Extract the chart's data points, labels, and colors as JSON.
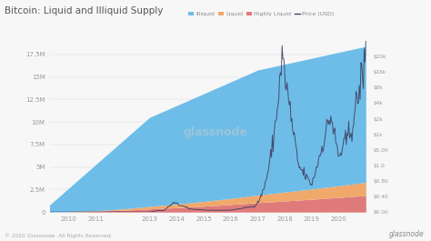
{
  "title": "Bitcoin: Liquid and Illiquid Supply",
  "xlim_start": 2009.3,
  "xlim_end": 2021.1,
  "ylim_left": [
    0,
    19000000
  ],
  "ylim_right": [
    0,
    22000
  ],
  "yticks_left": [
    0,
    2500000,
    5000000,
    7500000,
    10000000,
    12500000,
    15000000,
    17500000
  ],
  "ytick_labels_left": [
    "0",
    "2.5M",
    "5M",
    "7.5M",
    "10M",
    "12.5M",
    "15M",
    "17.5M"
  ],
  "yticks_right": [
    0,
    2000,
    4000,
    6000,
    8000,
    10000,
    12000,
    14000,
    16000,
    18000,
    20000
  ],
  "ytick_labels_right": [
    "$0.00",
    "$0.40",
    "$0.80",
    "$1.0",
    "$5.00",
    "$1k",
    "$2k",
    "$4k",
    "$8k",
    "$16k",
    "$20k"
  ],
  "color_illiquid": "#6dbde8",
  "color_highly_liquid": "#e07b7b",
  "color_liquid": "#f0a96b",
  "color_price": "#404060",
  "bg_color": "#f7f7f7",
  "watermark": "glassnode",
  "footer": "© 2020 Glassnode. All Rights Reserved.",
  "legend_items": [
    "Illiquid",
    "Liquid",
    "Highly Liquid",
    "Price (USD)"
  ],
  "legend_colors": [
    "#6dbde8",
    "#f0a96b",
    "#e07b7b",
    "#666688"
  ]
}
